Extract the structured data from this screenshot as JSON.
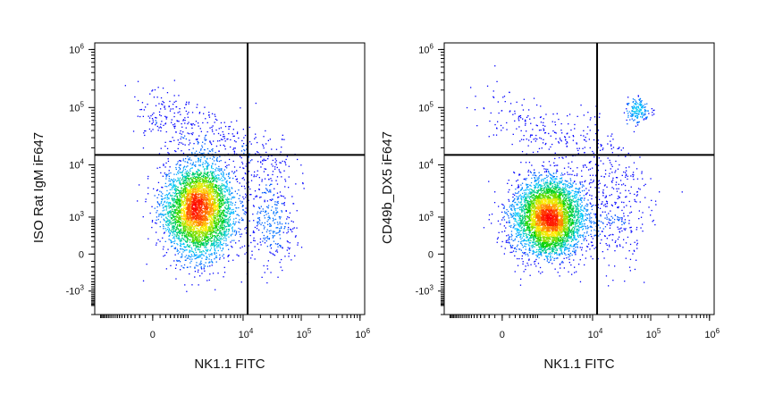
{
  "chart_data": [
    {
      "type": "scatter",
      "subtype": "flow-cytometry-density-dot-plot",
      "title": "",
      "xlabel": "NK1.1 FITC",
      "ylabel": "ISO Rat IgM iF647",
      "x_scale": "biexponential",
      "y_scale": "biexponential",
      "x_ticks": [
        {
          "label": "0",
          "value": 0
        },
        {
          "label": "10",
          "sup": "4",
          "value": 10000
        },
        {
          "label": "10",
          "sup": "5",
          "value": 100000
        },
        {
          "label": "10",
          "sup": "6",
          "value": 1000000
        }
      ],
      "y_ticks": [
        {
          "label": "-10",
          "sup": "3",
          "value": -1000
        },
        {
          "label": "0",
          "value": 0
        },
        {
          "label": "10",
          "sup": "3",
          "value": 1000
        },
        {
          "label": "10",
          "sup": "4",
          "value": 10000
        },
        {
          "label": "10",
          "sup": "5",
          "value": 100000
        },
        {
          "label": "10",
          "sup": "6",
          "value": 1000000
        }
      ],
      "quadrant_gate": {
        "x": 12000,
        "y": 15000
      },
      "populations": [
        {
          "x_center": 1500,
          "y_center": 1500,
          "weight": 0.8,
          "description": "main NK1.1- population, medium spread"
        },
        {
          "x_center": 30000,
          "y_center": 800,
          "weight": 0.1,
          "description": "small NK1.1+ population below gate"
        },
        {
          "x_center": 3000,
          "y_center": 30000,
          "weight": 0.1,
          "description": "sparse diagonal scatter upper left"
        }
      ],
      "grid": false,
      "legend": "none"
    },
    {
      "type": "scatter",
      "subtype": "flow-cytometry-density-dot-plot",
      "title": "",
      "xlabel": "NK1.1 FITC",
      "ylabel": "CD49b_DX5 iF647",
      "x_scale": "biexponential",
      "y_scale": "biexponential",
      "x_ticks": [
        {
          "label": "0",
          "value": 0
        },
        {
          "label": "10",
          "sup": "4",
          "value": 10000
        },
        {
          "label": "10",
          "sup": "5",
          "value": 100000
        },
        {
          "label": "10",
          "sup": "6",
          "value": 1000000
        }
      ],
      "y_ticks": [
        {
          "label": "-10",
          "sup": "3",
          "value": -1000
        },
        {
          "label": "0",
          "value": 0
        },
        {
          "label": "10",
          "sup": "3",
          "value": 1000
        },
        {
          "label": "10",
          "sup": "4",
          "value": 10000
        },
        {
          "label": "10",
          "sup": "5",
          "value": 100000
        },
        {
          "label": "10",
          "sup": "6",
          "value": 1000000
        }
      ],
      "quadrant_gate": {
        "x": 12000,
        "y": 15000
      },
      "populations": [
        {
          "x_center": 1500,
          "y_center": 1000,
          "weight": 0.85,
          "description": "main double-negative population"
        },
        {
          "x_center": 60000,
          "y_center": 90000,
          "weight": 0.04,
          "description": "NK1.1+ CD49b+ NK cell cluster"
        },
        {
          "x_center": 20000,
          "y_center": 1200,
          "weight": 0.06,
          "description": "NK1.1+ CD49b- cells"
        },
        {
          "x_center": 2500,
          "y_center": 30000,
          "weight": 0.05,
          "description": "sparse upper-left scatter"
        }
      ],
      "grid": false,
      "legend": "none"
    }
  ],
  "colors": {
    "density_low": "#0000ff",
    "density_mid_low": "#00c8ff",
    "density_mid": "#00d000",
    "density_mid_high": "#ffee00",
    "density_high": "#ff0000",
    "frame": "#000000",
    "gate": "#000000"
  }
}
